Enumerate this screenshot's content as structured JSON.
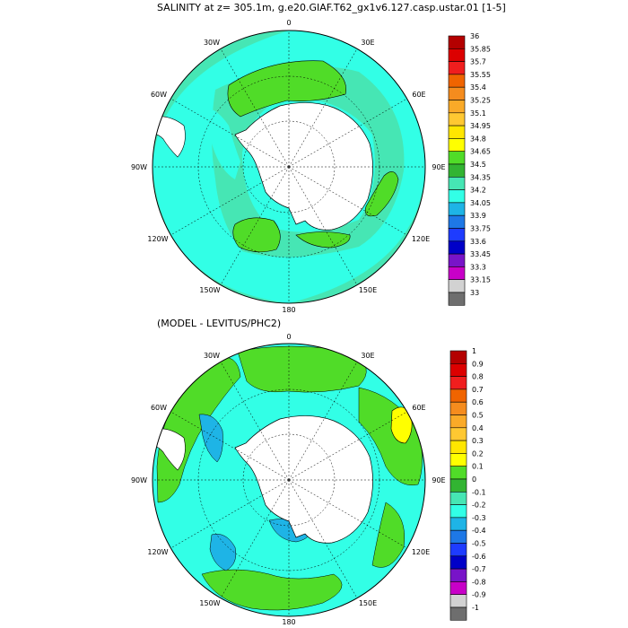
{
  "panel1": {
    "title": "SALINITY at z= 305.1m, g.e20.GIAF.T62_gx1v6.127.casp.ustar.01 [1-5]",
    "lon_labels": [
      "0",
      "30E",
      "60E",
      "90E",
      "120E",
      "150E",
      "180",
      "150W",
      "120W",
      "90W",
      "60W",
      "30W"
    ],
    "colorbar": {
      "labels": [
        "36",
        "35.85",
        "35.7",
        "35.55",
        "35.4",
        "35.25",
        "35.1",
        "34.95",
        "34.8",
        "34.65",
        "34.5",
        "34.35",
        "34.2",
        "34.05",
        "33.9",
        "33.75",
        "33.6",
        "33.45",
        "33.3",
        "33.15",
        "33"
      ],
      "colors": [
        "#b40000",
        "#dc0000",
        "#f01e1e",
        "#f06400",
        "#f58c1e",
        "#faaa28",
        "#ffc832",
        "#ffe600",
        "#ffff00",
        "#50dc28",
        "#32b432",
        "#46e6b4",
        "#32ffe6",
        "#1eb4e6",
        "#1e78e6",
        "#1e3cff",
        "#0000c8",
        "#7814c8",
        "#c800c8",
        "#d2d2d2",
        "#6e6e6e"
      ]
    }
  },
  "panel2": {
    "title": "(MODEL - LEVITUS/PHC2)",
    "lon_labels": [
      "0",
      "30E",
      "60E",
      "90E",
      "120E",
      "150E",
      "180",
      "150W",
      "120W",
      "90W",
      "60W",
      "30W"
    ],
    "colorbar": {
      "labels": [
        "1",
        "0.9",
        "0.8",
        "0.7",
        "0.6",
        "0.5",
        "0.4",
        "0.3",
        "0.2",
        "0.1",
        "0",
        "-0.1",
        "-0.2",
        "-0.3",
        "-0.4",
        "-0.5",
        "-0.6",
        "-0.7",
        "-0.8",
        "-0.9",
        "-1"
      ],
      "colors": [
        "#b40000",
        "#dc0000",
        "#f01e1e",
        "#f06400",
        "#f58c1e",
        "#faaa28",
        "#ffc832",
        "#ffe600",
        "#ffff00",
        "#50dc28",
        "#32b432",
        "#46e6b4",
        "#32ffe6",
        "#1eb4e6",
        "#1e78e6",
        "#1e3cff",
        "#0000c8",
        "#7814c8",
        "#c800c8",
        "#d2d2d2",
        "#6e6e6e"
      ]
    }
  },
  "chart_data": [
    {
      "type": "heatmap",
      "title": "SALINITY at z= 305.1m, g.e20.GIAF.T62_gx1v6.127.casp.ustar.01 [1-5]",
      "projection": "south-polar-stereographic",
      "longitude_labels": [
        "0",
        "30E",
        "60E",
        "90E",
        "120E",
        "150E",
        "180",
        "150W",
        "120W",
        "90W",
        "60W",
        "30W"
      ],
      "color_levels": [
        33,
        33.15,
        33.3,
        33.45,
        33.6,
        33.75,
        33.9,
        34.05,
        34.2,
        34.35,
        34.5,
        34.65,
        34.8,
        34.95,
        35.1,
        35.25,
        35.4,
        35.55,
        35.7,
        35.85,
        36
      ],
      "dominant_range": [
        34.35,
        34.95
      ],
      "grid": true,
      "legend_position": "right"
    },
    {
      "type": "heatmap",
      "title": "(MODEL - LEVITUS/PHC2)",
      "projection": "south-polar-stereographic",
      "longitude_labels": [
        "0",
        "30E",
        "60E",
        "90E",
        "120E",
        "150E",
        "180",
        "150W",
        "120W",
        "90W",
        "60W",
        "30W"
      ],
      "color_levels": [
        -1,
        -0.9,
        -0.8,
        -0.7,
        -0.6,
        -0.5,
        -0.4,
        -0.3,
        -0.2,
        -0.1,
        0,
        0.1,
        0.2,
        0.3,
        0.4,
        0.5,
        0.6,
        0.7,
        0.8,
        0.9,
        1
      ],
      "dominant_range": [
        -0.2,
        0.2
      ],
      "grid": true,
      "legend_position": "right"
    }
  ]
}
